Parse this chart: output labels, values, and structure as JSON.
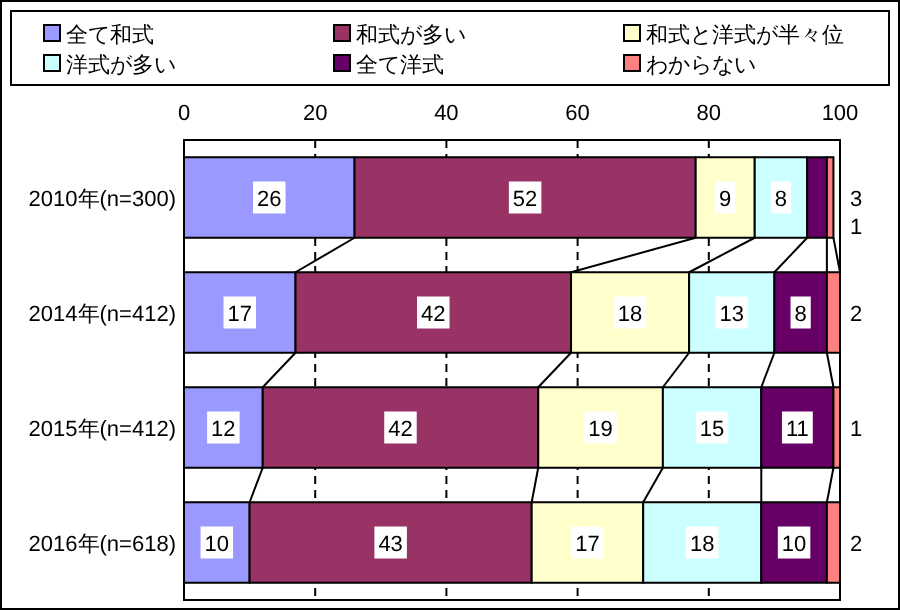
{
  "chart_data": {
    "type": "bar",
    "orientation": "horizontal",
    "stacked": true,
    "categories": [
      "2010年(n=300)",
      "2014年(n=412)",
      "2015年(n=412)",
      "2016年(n=618)"
    ],
    "series": [
      {
        "name": "全て和式",
        "color": "#9999ff",
        "values": [
          26,
          17,
          12,
          10
        ]
      },
      {
        "name": "和式が多い",
        "color": "#993366",
        "values": [
          52,
          42,
          42,
          43
        ]
      },
      {
        "name": "和式と洋式が半々位",
        "color": "#ffffcc",
        "values": [
          9,
          18,
          19,
          17
        ]
      },
      {
        "name": "洋式が多い",
        "color": "#ccffff",
        "values": [
          8,
          13,
          15,
          18
        ]
      },
      {
        "name": "全て洋式",
        "color": "#660066",
        "values": [
          3,
          8,
          11,
          10
        ]
      },
      {
        "name": "わからない",
        "color": "#ff8080",
        "values": [
          1,
          2,
          1,
          2
        ]
      }
    ],
    "xlim": [
      0,
      100
    ],
    "xticks": [
      0,
      20,
      40,
      60,
      80,
      100
    ],
    "grid": "x",
    "legend": "top",
    "data_labels": true
  }
}
